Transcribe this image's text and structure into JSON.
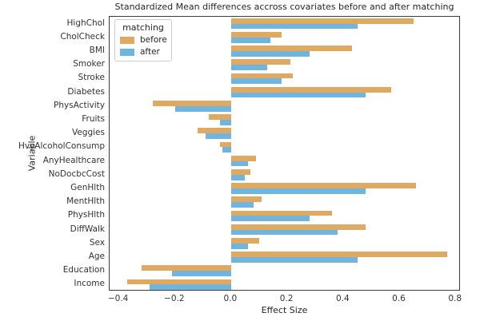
{
  "chart_data": {
    "type": "bar",
    "orientation": "horizontal",
    "title": "Standardized Mean differences accross covariates before and after matching",
    "xlabel": "Effect Size",
    "ylabel": "Variable",
    "xlim": [
      -0.433,
      0.818
    ],
    "xticks": [
      -0.4,
      -0.2,
      0.0,
      0.2,
      0.4,
      0.6,
      0.8
    ],
    "xtick_labels": [
      "−0.4",
      "−0.2",
      "0.0",
      "0.2",
      "0.4",
      "0.6",
      "0.8"
    ],
    "grid": false,
    "categories": [
      "HighChol",
      "CholCheck",
      "BMI",
      "Smoker",
      "Stroke",
      "Diabetes",
      "PhysActivity",
      "Fruits",
      "Veggies",
      "HvyAlcoholConsump",
      "AnyHealthcare",
      "NoDocbcCost",
      "GenHlth",
      "MentHlth",
      "PhysHlth",
      "DiffWalk",
      "Sex",
      "Age",
      "Education",
      "Income"
    ],
    "series": [
      {
        "name": "before",
        "color": "#e0a962",
        "values": [
          0.65,
          0.18,
          0.43,
          0.21,
          0.22,
          0.57,
          -0.28,
          -0.08,
          -0.12,
          -0.04,
          0.09,
          0.07,
          0.66,
          0.11,
          0.36,
          0.48,
          0.1,
          0.77,
          -0.32,
          -0.37
        ]
      },
      {
        "name": "after",
        "color": "#6fb5df",
        "values": [
          0.45,
          0.14,
          0.28,
          0.13,
          0.18,
          0.48,
          -0.2,
          -0.04,
          -0.09,
          -0.03,
          0.06,
          0.05,
          0.48,
          0.08,
          0.28,
          0.38,
          0.06,
          0.45,
          -0.21,
          -0.29
        ]
      }
    ],
    "legend": {
      "title": "matching",
      "position": "upper left"
    }
  }
}
